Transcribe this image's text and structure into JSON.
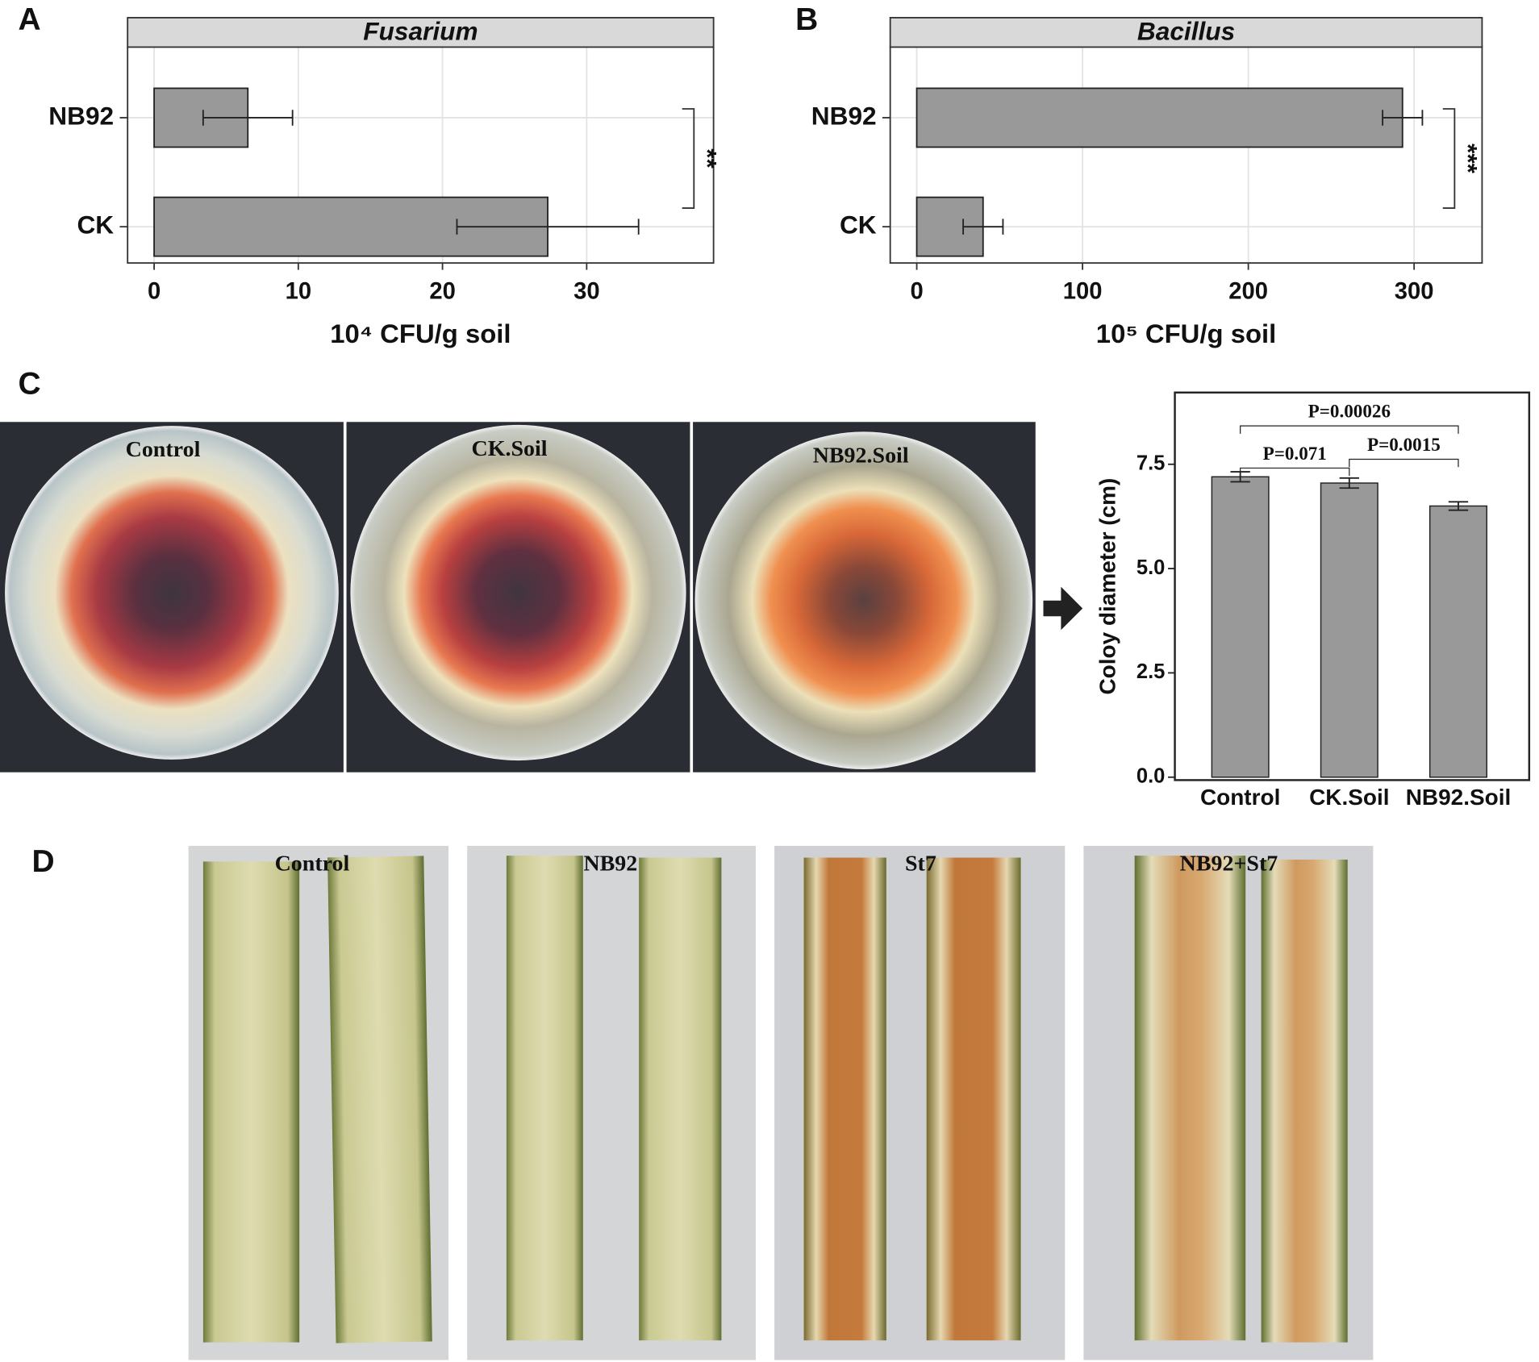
{
  "chart_data": [
    {
      "type": "hbar",
      "panel": "A",
      "title": "Fusarium",
      "xlabel": "10⁴ CFU/g soil",
      "categories": [
        "NB92",
        "CK"
      ],
      "values": [
        6.5,
        27.3
      ],
      "errors": [
        3.1,
        6.3
      ],
      "color": "#999999",
      "xlim": [
        -1.84,
        38.8
      ],
      "xticks": [
        0,
        10,
        20,
        30
      ],
      "grid": true,
      "significance": "**"
    },
    {
      "type": "hbar",
      "panel": "B",
      "title": "Bacillus",
      "xlabel": "10⁵ CFU/g soil",
      "categories": [
        "NB92",
        "CK"
      ],
      "values": [
        293,
        40
      ],
      "errors": [
        12,
        12
      ],
      "color": "#999999",
      "xlim": [
        -16,
        341
      ],
      "xticks": [
        0,
        100,
        200,
        300
      ],
      "grid": true,
      "significance": "***"
    },
    {
      "type": "bar",
      "panel": "C",
      "ylabel": "Coloy diameter (cm)",
      "categories": [
        "Control",
        "CK.Soil",
        "NB92.Soil"
      ],
      "values": [
        7.2,
        7.05,
        6.5
      ],
      "errors": [
        0.12,
        0.12,
        0.1
      ],
      "color": "#999999",
      "ylim": [
        -0.07,
        9.22
      ],
      "yticks": [
        {
          "value": 0,
          "label": "0.0"
        },
        {
          "value": 2.5,
          "label": "2.5"
        },
        {
          "value": 5,
          "label": "5.0"
        },
        {
          "value": 7.5,
          "label": "7.5"
        }
      ],
      "grid": false,
      "annotations": [
        "P=0.00026",
        "P=0.071",
        "P=0.0015"
      ]
    }
  ],
  "photo_panels": [
    {
      "panel": "C",
      "labels": [
        "Control",
        "CK.Soil",
        "NB92.Soil"
      ]
    },
    {
      "panel": "D",
      "labels": [
        "Control",
        "NB92",
        "St7",
        "NB92+St7"
      ]
    }
  ]
}
